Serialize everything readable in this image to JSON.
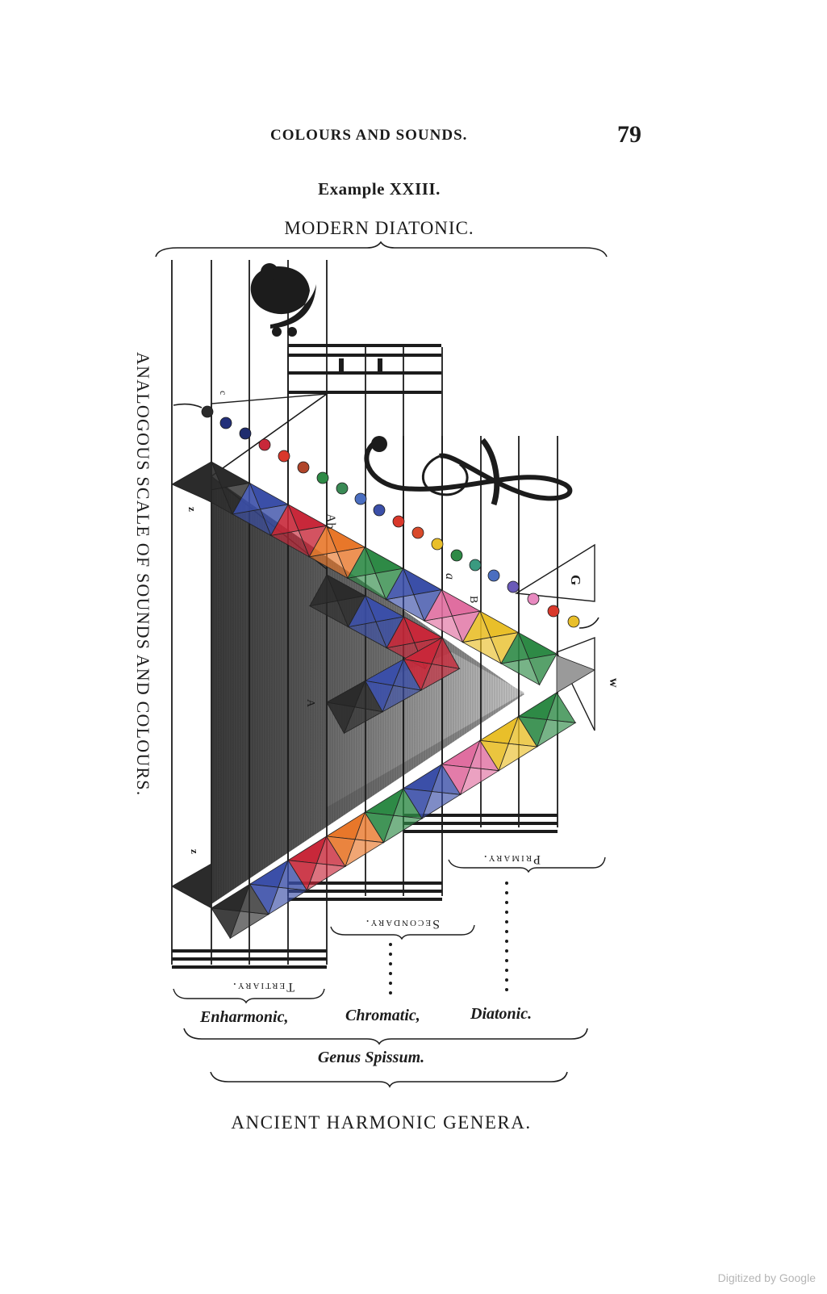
{
  "header": {
    "running_title": "COLOURS AND SOUNDS.",
    "page_number": "79"
  },
  "example": {
    "title": "Example XXIII.",
    "subtitle": "MODERN DIATONIC."
  },
  "diagram": {
    "side_title": "ANALOGOUS SCALE OF SOUNDS AND COLOURS.",
    "note_letters": {
      "c": "c",
      "ab_upper": "Ab",
      "ab_lower": "a",
      "a": "A",
      "g": "G",
      "w": "w",
      "z_upper": "z",
      "z_lower": "z"
    },
    "group_labels": {
      "primary": "Primary.",
      "secondary": "Secondary.",
      "tertiary": "Tertiary."
    },
    "genera": [
      "Enharmonic,",
      "Chromatic,",
      "Diatonic."
    ],
    "genus_label": "Genus Spissum.",
    "bottom_title": "ANCIENT HARMONIC GENERA.",
    "colors": {
      "ink": "#1c1c1c",
      "paper": "#ffffff",
      "black": "#2b2b2b",
      "blue": "#3b4fa8",
      "crimson": "#c8283a",
      "red": "#d9382b",
      "orange": "#e8772a",
      "yellow": "#e9bf2a",
      "green": "#2e8a46",
      "olive": "#6a8a35",
      "violet": "#6a4a9c",
      "pink": "#e06ea0",
      "grey": "#9a9a9a"
    }
  },
  "footer": {
    "digitized": "Digitized by Google"
  }
}
